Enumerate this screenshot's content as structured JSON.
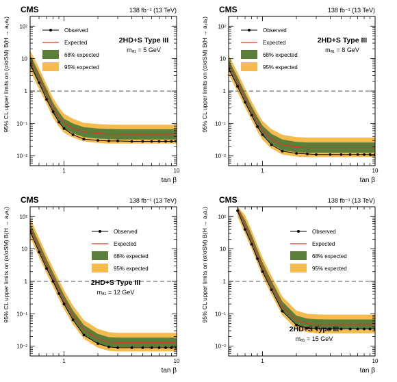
{
  "colors": {
    "band95": "#f5bb4f",
    "band68": "#5b7f3a",
    "expected": "#d83a2a",
    "observed": "#000000",
    "reference": "#555555"
  },
  "chart_data": [
    {
      "type": "line",
      "experiment": "CMS",
      "lumi": "138 fb⁻¹ (13 TeV)",
      "model": "2HD+S Type III",
      "mass_label": "mₐ₁ = 5 GeV",
      "xlabel": "tan β",
      "ylabel": "95% CL upper limits on (σ/σSM) B(H → a₁a₁)",
      "xscale": "log",
      "yscale": "log",
      "xlim": [
        0.5,
        10
      ],
      "ylim": [
        0.005,
        200
      ],
      "xticks": [
        1,
        10
      ],
      "xtick_labels": [
        "1",
        "10"
      ],
      "yticks": [
        0.01,
        0.1,
        1,
        10,
        100
      ],
      "ytick_labels": [
        "10⁻²",
        "10⁻¹",
        "1",
        "10",
        "10²"
      ],
      "legend": {
        "placement": "top-left",
        "observed": "Observed",
        "expected": "Expected",
        "band68": "68% expected",
        "band95": "95% expected"
      },
      "reference_line": 1,
      "x": [
        0.5,
        0.6,
        0.7,
        0.8,
        0.9,
        1.0,
        1.2,
        1.5,
        2.0,
        2.5,
        3,
        4,
        5,
        6,
        7,
        8,
        9,
        10
      ],
      "series": [
        {
          "name": "Observed",
          "values": [
            7.0,
            1.8,
            0.55,
            0.23,
            0.11,
            0.07,
            0.045,
            0.033,
            0.03,
            0.029,
            0.029,
            0.028,
            0.028,
            0.028,
            0.028,
            0.028,
            0.028,
            0.028
          ]
        },
        {
          "name": "Expected",
          "values": [
            9.0,
            2.5,
            0.8,
            0.3,
            0.16,
            0.1,
            0.07,
            0.055,
            0.05,
            0.048,
            0.047,
            0.047,
            0.047,
            0.047,
            0.047,
            0.047,
            0.047,
            0.047
          ]
        }
      ],
      "band68_low": [
        6.0,
        1.6,
        0.55,
        0.2,
        0.11,
        0.07,
        0.05,
        0.038,
        0.034,
        0.033,
        0.032,
        0.032,
        0.032,
        0.032,
        0.032,
        0.032,
        0.032,
        0.032
      ],
      "band68_high": [
        13,
        3.6,
        1.15,
        0.43,
        0.23,
        0.14,
        0.1,
        0.077,
        0.07,
        0.068,
        0.067,
        0.067,
        0.067,
        0.067,
        0.067,
        0.067,
        0.067,
        0.067
      ],
      "band95_low": [
        4.2,
        1.15,
        0.4,
        0.15,
        0.08,
        0.052,
        0.037,
        0.028,
        0.025,
        0.024,
        0.024,
        0.024,
        0.024,
        0.024,
        0.024,
        0.024,
        0.024,
        0.024
      ],
      "band95_high": [
        18,
        5.2,
        1.6,
        0.6,
        0.32,
        0.2,
        0.14,
        0.105,
        0.096,
        0.093,
        0.092,
        0.092,
        0.092,
        0.092,
        0.092,
        0.092,
        0.092,
        0.092
      ]
    },
    {
      "type": "line",
      "experiment": "CMS",
      "lumi": "138 fb⁻¹ (13 TeV)",
      "model": "2HD+S Type III",
      "mass_label": "mₐ₁ = 8 GeV",
      "xlabel": "tan β",
      "ylabel": "95% CL upper limits on (σ/σSM) B(H → a₁a₁)",
      "xscale": "log",
      "yscale": "log",
      "xlim": [
        0.5,
        10
      ],
      "ylim": [
        0.005,
        200
      ],
      "xticks": [
        1,
        10
      ],
      "xtick_labels": [
        "1",
        "10"
      ],
      "yticks": [
        0.01,
        0.1,
        1,
        10,
        100
      ],
      "ytick_labels": [
        "10⁻²",
        "10⁻¹",
        "1",
        "10",
        "10²"
      ],
      "legend": {
        "placement": "top-left",
        "observed": "Observed",
        "expected": "Expected",
        "band68": "68% expected",
        "band95": "95% expected"
      },
      "reference_line": 1,
      "x": [
        0.5,
        0.6,
        0.7,
        0.8,
        0.9,
        1.0,
        1.2,
        1.5,
        2.0,
        2.5,
        3,
        4,
        5,
        6,
        7,
        8,
        9,
        10
      ],
      "series": [
        {
          "name": "Observed",
          "values": [
            5.0,
            1.4,
            0.45,
            0.18,
            0.08,
            0.045,
            0.022,
            0.014,
            0.012,
            0.0115,
            0.011,
            0.011,
            0.011,
            0.011,
            0.011,
            0.011,
            0.011,
            0.011
          ]
        },
        {
          "name": "Expected",
          "values": [
            6.5,
            1.9,
            0.6,
            0.24,
            0.11,
            0.06,
            0.033,
            0.022,
            0.019,
            0.018,
            0.018,
            0.018,
            0.018,
            0.018,
            0.018,
            0.018,
            0.018,
            0.018
          ]
        }
      ],
      "band68_low": [
        4.5,
        1.3,
        0.42,
        0.17,
        0.077,
        0.042,
        0.023,
        0.015,
        0.013,
        0.0125,
        0.0125,
        0.0125,
        0.0125,
        0.0125,
        0.0125,
        0.0125,
        0.0125,
        0.0125
      ],
      "band68_high": [
        9.3,
        2.7,
        0.86,
        0.34,
        0.16,
        0.086,
        0.048,
        0.032,
        0.027,
        0.026,
        0.026,
        0.026,
        0.026,
        0.026,
        0.026,
        0.026,
        0.026,
        0.026
      ],
      "band95_low": [
        3.3,
        0.95,
        0.31,
        0.125,
        0.057,
        0.031,
        0.017,
        0.011,
        0.0096,
        0.0092,
        0.0092,
        0.0092,
        0.0092,
        0.0092,
        0.0092,
        0.0092,
        0.0092,
        0.0092
      ],
      "band95_high": [
        13,
        3.8,
        1.2,
        0.48,
        0.22,
        0.12,
        0.067,
        0.045,
        0.038,
        0.037,
        0.037,
        0.037,
        0.037,
        0.037,
        0.037,
        0.037,
        0.037,
        0.037
      ]
    },
    {
      "type": "line",
      "experiment": "CMS",
      "lumi": "138 fb⁻¹ (13 TeV)",
      "model": "2HD+S Type III",
      "mass_label": "mₐ₁ = 12 GeV",
      "xlabel": "tan β",
      "ylabel": "95% CL upper limits on (σ/σSM) B(H → a₁a₁)",
      "xscale": "log",
      "yscale": "log",
      "xlim": [
        0.5,
        10
      ],
      "ylim": [
        0.005,
        200
      ],
      "xticks": [
        1,
        10
      ],
      "xtick_labels": [
        "1",
        "10"
      ],
      "yticks": [
        0.01,
        0.1,
        1,
        10,
        100
      ],
      "ytick_labels": [
        "10⁻²",
        "10⁻¹",
        "1",
        "10",
        "10²"
      ],
      "legend": {
        "placement": "top-right",
        "observed": "Observed",
        "expected": "Expected",
        "band68": "68% expected",
        "band95": "95% expected"
      },
      "reference_line": 1,
      "x": [
        0.5,
        0.6,
        0.7,
        0.8,
        0.9,
        1.0,
        1.2,
        1.5,
        2.0,
        2.5,
        3,
        4,
        5,
        6,
        7,
        8,
        9,
        10
      ],
      "series": [
        {
          "name": "Observed",
          "values": [
            35,
            8,
            2.5,
            1.0,
            0.42,
            0.2,
            0.065,
            0.022,
            0.012,
            0.0095,
            0.009,
            0.009,
            0.009,
            0.009,
            0.009,
            0.009,
            0.009,
            0.009
          ]
        },
        {
          "name": "Expected",
          "values": [
            45,
            11,
            3.4,
            1.3,
            0.56,
            0.27,
            0.09,
            0.032,
            0.017,
            0.0135,
            0.013,
            0.013,
            0.013,
            0.013,
            0.013,
            0.013,
            0.013,
            0.013
          ]
        }
      ],
      "band68_low": [
        32,
        7.6,
        2.4,
        0.92,
        0.4,
        0.19,
        0.064,
        0.023,
        0.012,
        0.0097,
        0.0094,
        0.0094,
        0.0094,
        0.0094,
        0.0094,
        0.0094,
        0.0094,
        0.0094
      ],
      "band68_high": [
        64,
        15.5,
        4.8,
        1.85,
        0.8,
        0.38,
        0.127,
        0.045,
        0.024,
        0.019,
        0.0185,
        0.0185,
        0.0185,
        0.0185,
        0.0185,
        0.0185,
        0.0185,
        0.0185
      ],
      "band95_low": [
        23,
        5.6,
        1.75,
        0.68,
        0.29,
        0.14,
        0.047,
        0.017,
        0.009,
        0.0072,
        0.0069,
        0.0069,
        0.0069,
        0.0069,
        0.0069,
        0.0069,
        0.0069,
        0.0069
      ],
      "band95_high": [
        90,
        22,
        6.8,
        2.6,
        1.12,
        0.54,
        0.18,
        0.064,
        0.034,
        0.027,
        0.026,
        0.026,
        0.026,
        0.026,
        0.026,
        0.026,
        0.026,
        0.026
      ]
    },
    {
      "type": "line",
      "experiment": "CMS",
      "lumi": "138 fb⁻¹ (13 TeV)",
      "model": "2HD+S Type III",
      "mass_label": "mₐ₁ = 15 GeV",
      "xlabel": "tan β",
      "ylabel": "95% CL upper limits on (σ/σSM) B(H → a₁a₁)",
      "xscale": "log",
      "yscale": "log",
      "xlim": [
        0.5,
        10
      ],
      "ylim": [
        0.005,
        200
      ],
      "xticks": [
        1,
        10
      ],
      "xtick_labels": [
        "1",
        "10"
      ],
      "yticks": [
        0.01,
        0.1,
        1,
        10,
        100
      ],
      "ytick_labels": [
        "10⁻²",
        "10⁻¹",
        "1",
        "10",
        "10²"
      ],
      "legend": {
        "placement": "top-right",
        "observed": "Observed",
        "expected": "Expected",
        "band68": "68% expected",
        "band95": "95% expected"
      },
      "reference_line": 1,
      "x": [
        0.6,
        0.7,
        0.8,
        0.9,
        1.0,
        1.2,
        1.5,
        2.0,
        2.5,
        3,
        4,
        5,
        6,
        7,
        8,
        9,
        10
      ],
      "series": [
        {
          "name": "Observed",
          "values": [
            150,
            40,
            14,
            5.0,
            2.0,
            0.55,
            0.12,
            0.045,
            0.036,
            0.035,
            0.034,
            0.034,
            0.034,
            0.034,
            0.034,
            0.034,
            0.034
          ]
        },
        {
          "name": "Expected",
          "values": [
            190,
            55,
            19,
            6.8,
            2.7,
            0.74,
            0.17,
            0.062,
            0.05,
            0.048,
            0.047,
            0.047,
            0.047,
            0.047,
            0.047,
            0.047,
            0.047
          ]
        }
      ],
      "band68_low": [
        135,
        39,
        13.5,
        4.8,
        1.9,
        0.53,
        0.12,
        0.044,
        0.036,
        0.034,
        0.034,
        0.034,
        0.034,
        0.034,
        0.034,
        0.034,
        0.034
      ],
      "band68_high": [
        270,
        78,
        27,
        9.6,
        3.8,
        1.05,
        0.24,
        0.088,
        0.071,
        0.068,
        0.067,
        0.067,
        0.067,
        0.067,
        0.067,
        0.067,
        0.067
      ],
      "band95_low": [
        100,
        29,
        10,
        3.6,
        1.4,
        0.39,
        0.09,
        0.033,
        0.027,
        0.025,
        0.025,
        0.025,
        0.025,
        0.025,
        0.025,
        0.025,
        0.025
      ],
      "band95_high": [
        380,
        110,
        38,
        13.5,
        5.4,
        1.5,
        0.34,
        0.125,
        0.1,
        0.096,
        0.094,
        0.094,
        0.094,
        0.094,
        0.094,
        0.094,
        0.094
      ]
    }
  ]
}
